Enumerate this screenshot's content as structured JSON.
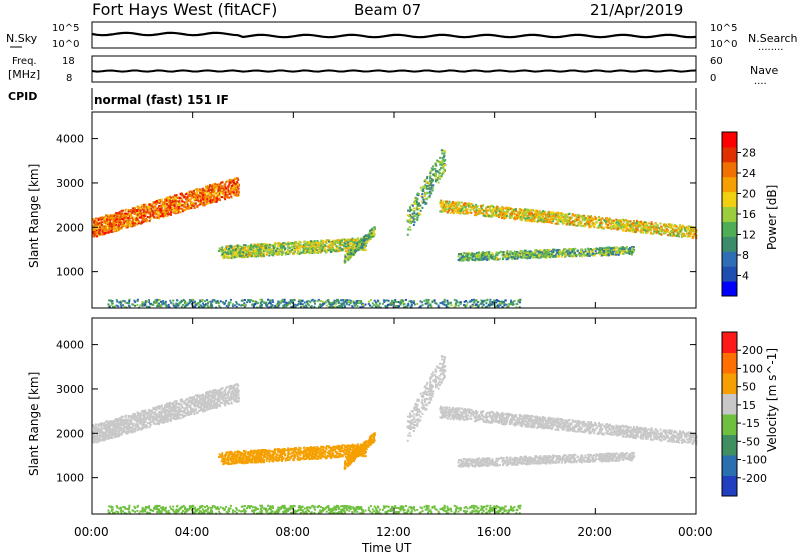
{
  "header": {
    "title": "Fort Hays West (fitACF)",
    "beam": "Beam 07",
    "date": "21/Apr/2019"
  },
  "noise_panel": {
    "left_label": "N.Sky",
    "right_label": "N.Search",
    "left_ticks": [
      "10^5",
      "10^0"
    ],
    "right_ticks": [
      "10^5",
      "10^0"
    ],
    "left_dots": "........",
    "right_dots": "........"
  },
  "freq_panel": {
    "left_label_top": "Freq.",
    "left_label_unit": "[MHz]",
    "right_label": "Nave",
    "left_ticks": [
      "18",
      "8"
    ],
    "right_ticks": [
      "60",
      "0"
    ],
    "right_dots": "...."
  },
  "cpid": {
    "label": "CPID",
    "mode": "normal (fast) 151 IF"
  },
  "axes": {
    "ylabel": "Slant Range [km]",
    "xlabel": "Time UT",
    "y_ticks": [
      "1000",
      "2000",
      "3000",
      "4000"
    ],
    "x_ticks": [
      "00:00",
      "04:00",
      "08:00",
      "12:00",
      "16:00",
      "20:00",
      "00:00"
    ]
  },
  "chart_data": [
    {
      "type": "heatmap",
      "variable": "power",
      "xlabel": "Time UT",
      "ylabel": "Slant Range [km]",
      "xlim": [
        0,
        24
      ],
      "ylim": [
        180,
        4600
      ],
      "colorbar": {
        "label": "Power [dB]",
        "ticks": [
          "28",
          "24",
          "20",
          "16",
          "12",
          "8",
          "4"
        ],
        "colors": [
          "#0000ff",
          "#1e4fb0",
          "#2f6eb4",
          "#3c8c6c",
          "#4fae55",
          "#9ccd3c",
          "#f0d010",
          "#f5a000",
          "#f07000",
          "#e03000",
          "#ff0000"
        ]
      },
      "features": [
        {
          "name": "band-a",
          "start_h": 0.0,
          "end_h": 5.8,
          "start_km": 2000,
          "end_km": 2950,
          "level": 8
        },
        {
          "name": "band-b",
          "start_h": 5.0,
          "end_h": 10.9,
          "start_km": 1450,
          "end_km": 1650,
          "level": 5
        },
        {
          "name": "band-c",
          "start_h": 13.8,
          "end_h": 24.0,
          "start_km": 2500,
          "end_km": 1900,
          "level": 6
        },
        {
          "name": "band-d",
          "start_h": 14.5,
          "end_h": 21.5,
          "start_km": 1350,
          "end_km": 1500,
          "level": 4
        }
      ]
    },
    {
      "type": "heatmap",
      "variable": "velocity",
      "xlabel": "Time UT",
      "ylabel": "Slant Range [km]",
      "xlim": [
        0,
        24
      ],
      "ylim": [
        180,
        4600
      ],
      "colorbar": {
        "label": "Velocity [m s^-1]",
        "ticks": [
          "200",
          "100",
          "50",
          "15",
          "-15",
          "-50",
          "-100",
          "-200"
        ],
        "colors": [
          "#2040c0",
          "#2a6fb0",
          "#3f8f60",
          "#70c040",
          "#c8c8c8",
          "#f5a000",
          "#ff7000",
          "#ff1a1a"
        ]
      }
    }
  ]
}
